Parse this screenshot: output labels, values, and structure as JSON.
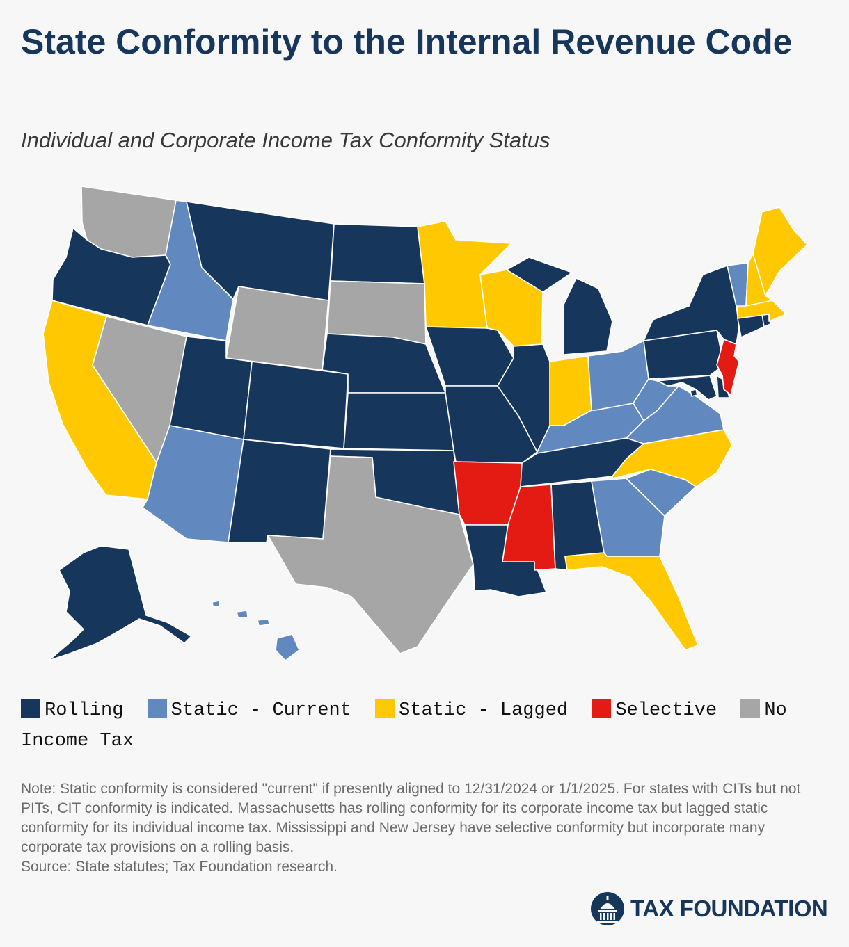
{
  "header": {
    "title": "State Conformity to the Internal Revenue Code",
    "subtitle": "Individual and Corporate Income Tax Conformity Status"
  },
  "colors": {
    "Rolling": "#17365c",
    "Static - Current": "#6188bf",
    "Static - Lagged": "#ffc800",
    "Selective": "#e31b13",
    "No Income Tax": "#a6a6a6"
  },
  "legend": {
    "items": [
      {
        "label": "Rolling",
        "color": "#17365c"
      },
      {
        "label": "Static - Current",
        "color": "#6188bf"
      },
      {
        "label": "Static - Lagged",
        "color": "#ffc800"
      },
      {
        "label": "Selective",
        "color": "#e31b13"
      },
      {
        "label": "No Income Tax",
        "color": "#a6a6a6"
      }
    ]
  },
  "map": {
    "states": [
      {
        "code": "WA",
        "category": "No Income Tax"
      },
      {
        "code": "OR",
        "category": "Rolling"
      },
      {
        "code": "CA",
        "category": "Static - Lagged"
      },
      {
        "code": "NV",
        "category": "No Income Tax"
      },
      {
        "code": "ID",
        "category": "Static - Current"
      },
      {
        "code": "MT",
        "category": "Rolling"
      },
      {
        "code": "WY",
        "category": "No Income Tax"
      },
      {
        "code": "UT",
        "category": "Rolling"
      },
      {
        "code": "AZ",
        "category": "Static - Current"
      },
      {
        "code": "CO",
        "category": "Rolling"
      },
      {
        "code": "NM",
        "category": "Rolling"
      },
      {
        "code": "ND",
        "category": "Rolling"
      },
      {
        "code": "SD",
        "category": "No Income Tax"
      },
      {
        "code": "NE",
        "category": "Rolling"
      },
      {
        "code": "KS",
        "category": "Rolling"
      },
      {
        "code": "OK",
        "category": "Rolling"
      },
      {
        "code": "TX",
        "category": "No Income Tax"
      },
      {
        "code": "MN",
        "category": "Static - Lagged"
      },
      {
        "code": "IA",
        "category": "Rolling"
      },
      {
        "code": "MO",
        "category": "Rolling"
      },
      {
        "code": "AR",
        "category": "Selective"
      },
      {
        "code": "LA",
        "category": "Rolling"
      },
      {
        "code": "WI",
        "category": "Static - Lagged"
      },
      {
        "code": "IL",
        "category": "Rolling"
      },
      {
        "code": "MI",
        "category": "Rolling"
      },
      {
        "code": "IN",
        "category": "Static - Lagged"
      },
      {
        "code": "OH",
        "category": "Static - Current"
      },
      {
        "code": "KY",
        "category": "Static - Current"
      },
      {
        "code": "TN",
        "category": "Rolling"
      },
      {
        "code": "MS",
        "category": "Selective"
      },
      {
        "code": "AL",
        "category": "Rolling"
      },
      {
        "code": "GA",
        "category": "Static - Current"
      },
      {
        "code": "FL",
        "category": "Static - Lagged"
      },
      {
        "code": "SC",
        "category": "Static - Current"
      },
      {
        "code": "NC",
        "category": "Static - Lagged"
      },
      {
        "code": "VA",
        "category": "Static - Current"
      },
      {
        "code": "WV",
        "category": "Static - Current"
      },
      {
        "code": "PA",
        "category": "Rolling"
      },
      {
        "code": "NY",
        "category": "Rolling"
      },
      {
        "code": "VT",
        "category": "Static - Current"
      },
      {
        "code": "NH",
        "category": "Static - Lagged"
      },
      {
        "code": "ME",
        "category": "Static - Lagged"
      },
      {
        "code": "MA",
        "category": "Static - Lagged"
      },
      {
        "code": "RI",
        "category": "Rolling"
      },
      {
        "code": "CT",
        "category": "Rolling"
      },
      {
        "code": "NJ",
        "category": "Selective"
      },
      {
        "code": "DE",
        "category": "Rolling"
      },
      {
        "code": "MD",
        "category": "Rolling"
      },
      {
        "code": "DC",
        "category": "Rolling"
      },
      {
        "code": "AK",
        "category": "Rolling"
      },
      {
        "code": "HI",
        "category": "Static - Current"
      }
    ]
  },
  "note": {
    "text": "Note: Static conformity is considered \"current\" if presently aligned to 12/31/2024 or 1/1/2025. For states with CITs but not PITs, CIT conformity is indicated. Massachusetts has rolling conformity for its corporate income tax but lagged static conformity for its individual income tax. Mississippi and New Jersey have selective conformity but incorporate many corporate tax provisions on a rolling basis.",
    "source": "Source: State statutes; Tax Foundation research."
  },
  "brand": {
    "name": "TAX FOUNDATION",
    "icon": "capitol-dome-icon"
  }
}
